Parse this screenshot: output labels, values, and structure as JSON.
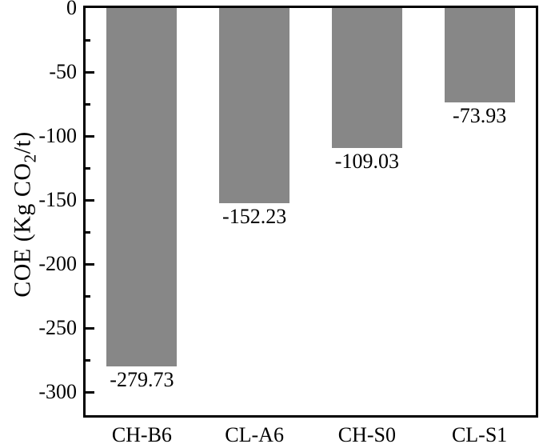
{
  "chart_data": {
    "type": "bar",
    "title": "",
    "categories": [
      "CH-B6",
      "CL-A6",
      "CH-S0",
      "CL-S1"
    ],
    "values": [
      -279.73,
      -152.23,
      -109.03,
      -73.93
    ],
    "value_labels": [
      "-279.73",
      "-152.23",
      "-109.03",
      "-73.93"
    ],
    "xlabel": "",
    "ylabel": "COE (Kg CO2/t)",
    "ylabel_parts": {
      "pre": "COE (Kg CO",
      "sub": "2",
      "post": "/t)"
    },
    "ylim": [
      -318,
      0
    ],
    "yticks": [
      0,
      -50,
      -100,
      -150,
      -200,
      -250,
      -300
    ],
    "ytick_labels": [
      "0",
      "-50",
      "-100",
      "-150",
      "-200",
      "-250",
      "-300"
    ],
    "minor_yticks": [
      -25,
      -75,
      -125,
      -175,
      -225,
      -275
    ],
    "bar_color": "#878787",
    "axis_color": "#000000",
    "grid": false,
    "legend": false
  }
}
